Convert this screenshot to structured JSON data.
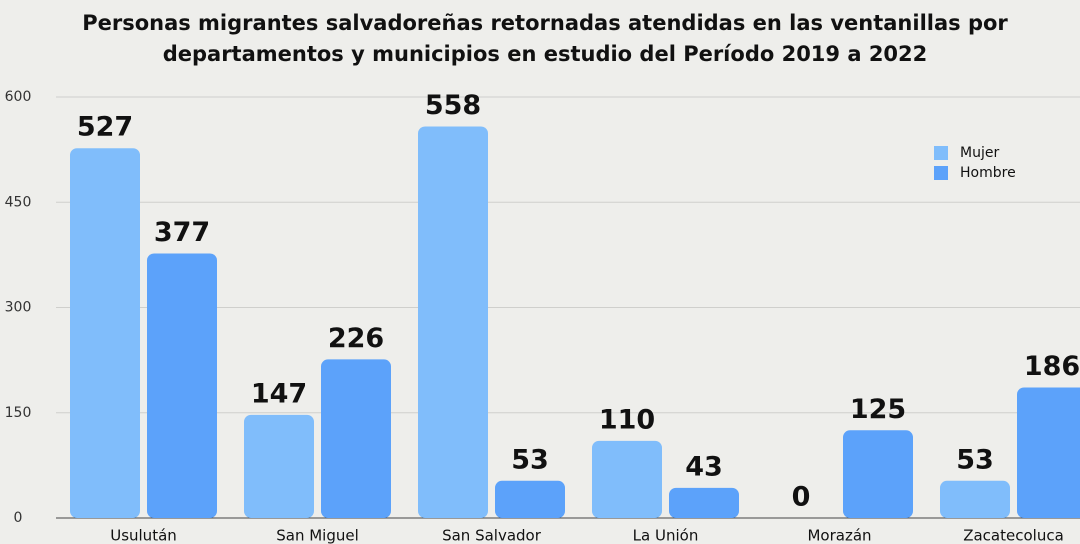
{
  "chart_data": {
    "type": "bar",
    "title": [
      "Personas migrantes salvadoreñas retornadas atendidas en las ventanillas por",
      "departamentos y municipios en estudio del Período 2019 a 2022"
    ],
    "categories": [
      "Usulután",
      "San Miguel",
      "San Salvador",
      "La Unión",
      "Morazán",
      "Zacatecoluca"
    ],
    "series": [
      {
        "name": "Mujer",
        "color": "#80bdfb",
        "values": [
          527,
          147,
          558,
          110,
          0,
          53
        ]
      },
      {
        "name": "Hombre",
        "color": "#5ca2fa",
        "values": [
          377,
          226,
          53,
          43,
          125,
          186
        ]
      }
    ],
    "ylim": [
      0,
      600
    ],
    "yticks": [
      0,
      150,
      300,
      450,
      600
    ],
    "grid": true,
    "legend": "top-right"
  }
}
